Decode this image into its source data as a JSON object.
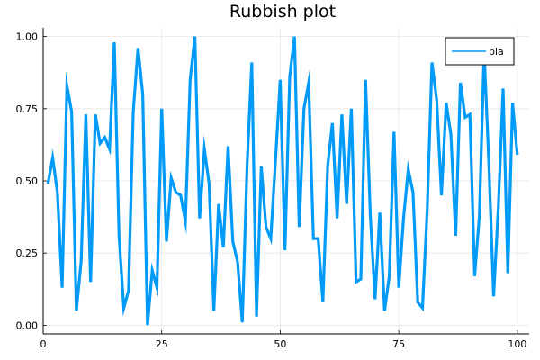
{
  "chart_data": {
    "type": "line",
    "title": "Rubbish plot",
    "xlabel": "",
    "ylabel": "",
    "xlim": [
      0,
      102.5
    ],
    "ylim": [
      -0.03,
      1.03
    ],
    "grid": true,
    "legend_position": "top-right",
    "x_ticks": [
      0,
      25,
      50,
      75,
      100
    ],
    "y_ticks": [
      0.0,
      0.25,
      0.5,
      0.75,
      1.0
    ],
    "x_tick_labels": [
      "0",
      "25",
      "50",
      "75",
      "100"
    ],
    "y_tick_labels": [
      "0.00",
      "0.25",
      "0.50",
      "0.75",
      "1.00"
    ],
    "series": [
      {
        "name": "bla",
        "color": "#009af9",
        "x": [
          1,
          2,
          3,
          4,
          5,
          6,
          7,
          8,
          9,
          10,
          11,
          12,
          13,
          14,
          15,
          16,
          17,
          18,
          19,
          20,
          21,
          22,
          23,
          24,
          25,
          26,
          27,
          28,
          29,
          30,
          31,
          32,
          33,
          34,
          35,
          36,
          37,
          38,
          39,
          40,
          41,
          42,
          43,
          44,
          45,
          46,
          47,
          48,
          49,
          50,
          51,
          52,
          53,
          54,
          55,
          56,
          57,
          58,
          59,
          60,
          61,
          62,
          63,
          64,
          65,
          66,
          67,
          68,
          69,
          70,
          71,
          72,
          73,
          74,
          75,
          76,
          77,
          78,
          79,
          80,
          81,
          82,
          83,
          84,
          85,
          86,
          87,
          88,
          89,
          90,
          91,
          92,
          93,
          94,
          95,
          96,
          97,
          98,
          99,
          100
        ],
        "values": [
          0.49,
          0.58,
          0.46,
          0.13,
          0.83,
          0.74,
          0.05,
          0.22,
          0.73,
          0.15,
          0.73,
          0.63,
          0.65,
          0.61,
          0.98,
          0.31,
          0.06,
          0.12,
          0.74,
          0.96,
          0.8,
          0.0,
          0.19,
          0.13,
          0.75,
          0.29,
          0.51,
          0.46,
          0.45,
          0.36,
          0.85,
          1.0,
          0.37,
          0.61,
          0.49,
          0.05,
          0.42,
          0.27,
          0.62,
          0.29,
          0.22,
          0.01,
          0.55,
          0.91,
          0.03,
          0.55,
          0.34,
          0.3,
          0.57,
          0.85,
          0.26,
          0.86,
          1.0,
          0.34,
          0.75,
          0.84,
          0.3,
          0.3,
          0.08,
          0.55,
          0.7,
          0.37,
          0.73,
          0.42,
          0.75,
          0.15,
          0.16,
          0.85,
          0.38,
          0.09,
          0.39,
          0.05,
          0.17,
          0.67,
          0.13,
          0.37,
          0.54,
          0.46,
          0.08,
          0.06,
          0.4,
          0.91,
          0.78,
          0.45,
          0.77,
          0.66,
          0.31,
          0.84,
          0.72,
          0.73,
          0.17,
          0.38,
          0.95,
          0.56,
          0.1,
          0.41,
          0.82,
          0.18,
          0.77,
          0.59
        ]
      }
    ]
  }
}
